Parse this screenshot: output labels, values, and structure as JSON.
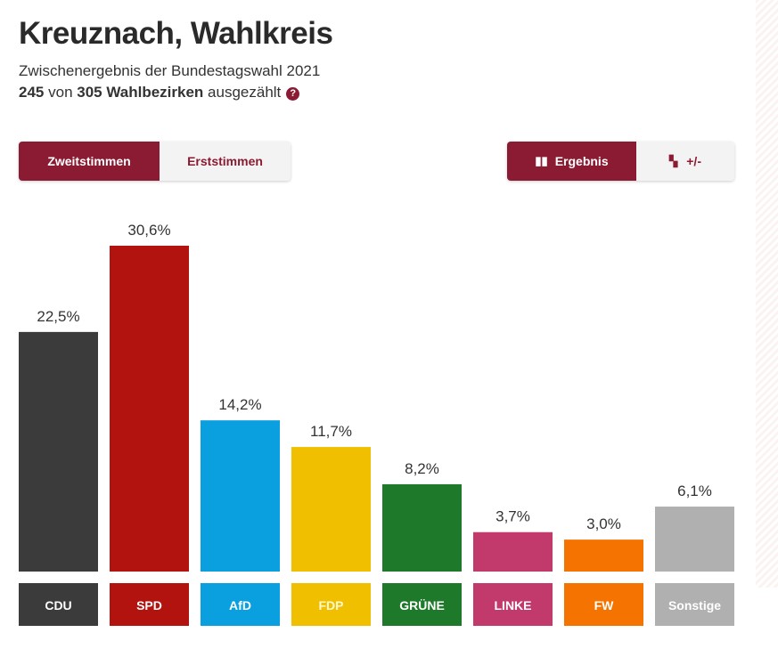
{
  "header": {
    "title": "Kreuznach, Wahlkreis",
    "subtitle": "Zwischenergebnis der Bundestagswahl 2021",
    "counted": "245",
    "counted_mid": "von",
    "total": "305 Wahlbezirken",
    "counted_suffix": "ausgezählt",
    "help_icon": "question-circle-icon"
  },
  "toggle_votes": {
    "active": "Zweitstimmen",
    "inactive": "Erststimmen"
  },
  "toggle_view": {
    "active": "Ergebnis",
    "inactive": "+/-",
    "active_icon": "bar-chart-icon",
    "inactive_icon": "diff-chart-icon"
  },
  "colors": {
    "accent": "#8a1b32"
  },
  "chart_data": {
    "type": "bar",
    "categories": [
      "CDU",
      "SPD",
      "AfD",
      "FDP",
      "GRÜNE",
      "LINKE",
      "FW",
      "Sonstige"
    ],
    "values": [
      22.5,
      30.6,
      14.2,
      11.7,
      8.2,
      3.7,
      3.0,
      6.1
    ],
    "labels": [
      "22,5%",
      "30,6%",
      "14,2%",
      "11,7%",
      "8,2%",
      "3,7%",
      "3,0%",
      "6,1%"
    ],
    "colors": [
      "#3b3b3b",
      "#b2130f",
      "#0aa0e0",
      "#f0c000",
      "#1e7a2a",
      "#c23a6b",
      "#f57300",
      "#b0b0b0"
    ],
    "unit": "%",
    "ylim": [
      0,
      30.6
    ],
    "grid": false
  }
}
